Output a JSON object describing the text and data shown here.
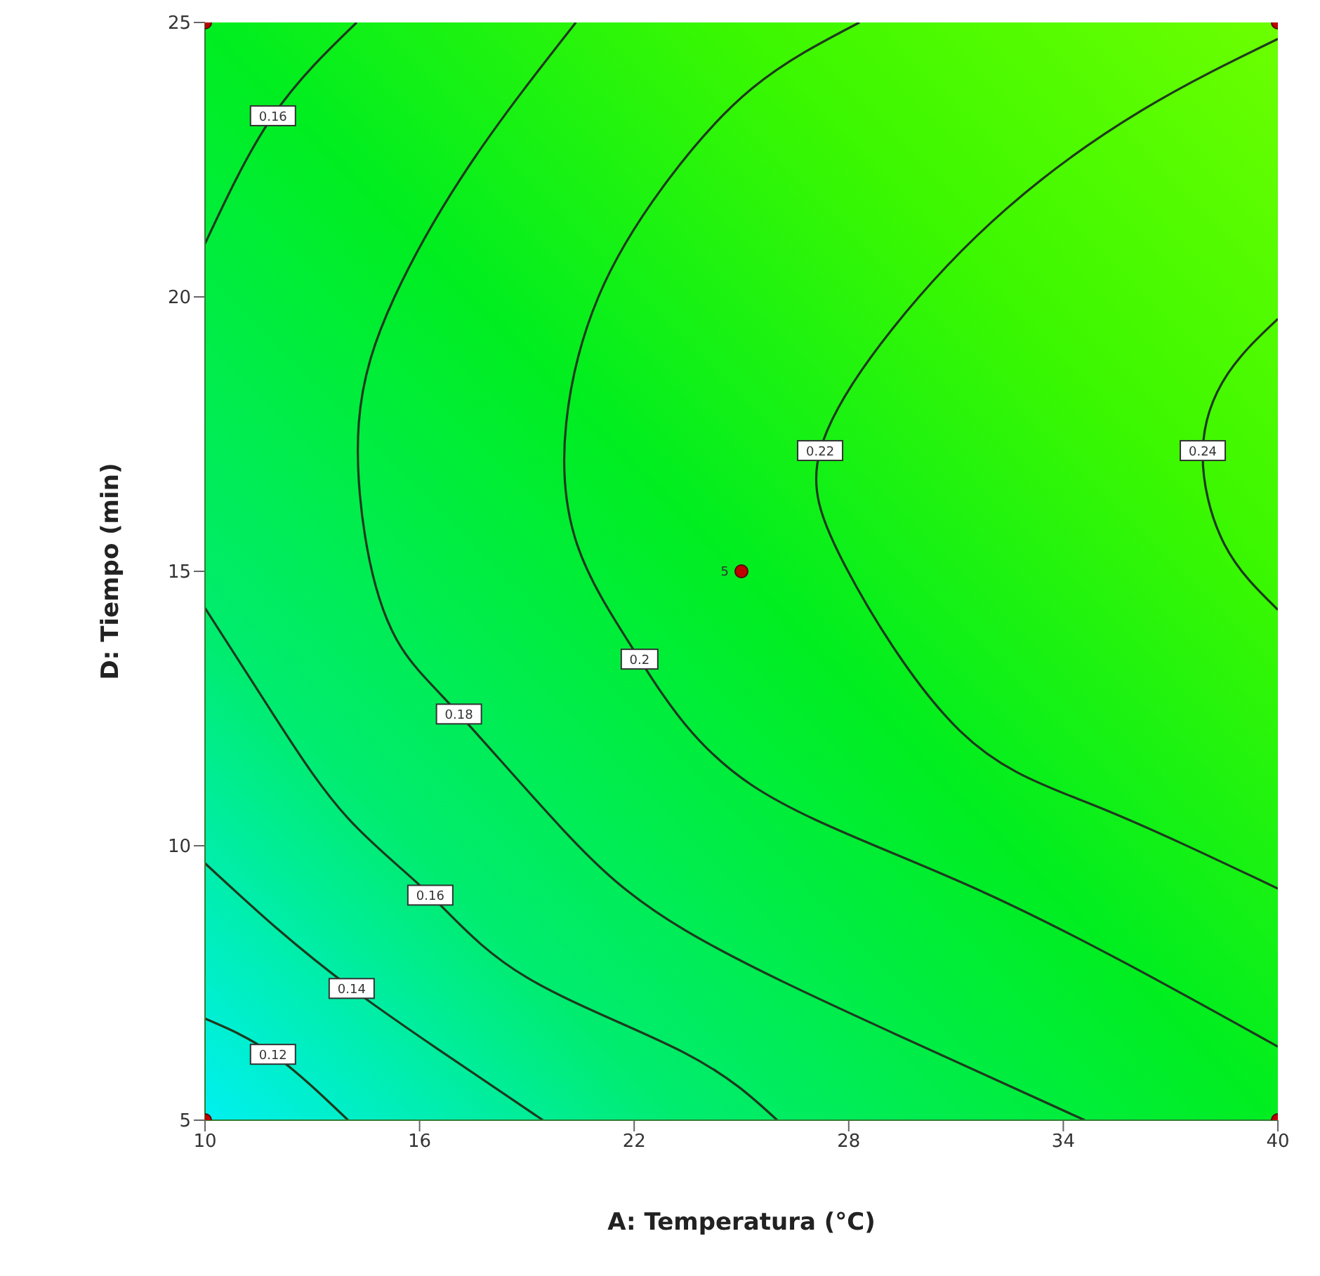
{
  "chart_data": {
    "type": "line",
    "xlabel": "A: Temperatura (°C)",
    "ylabel": "D: Tiempo (min)",
    "xlim": [
      10,
      40
    ],
    "xticks": [
      10,
      16,
      22,
      28,
      34,
      40
    ],
    "ylim": [
      5,
      25
    ],
    "yticks": [
      5,
      10,
      15,
      20,
      25
    ],
    "grid": false,
    "line_style": "solid",
    "marker": "none",
    "series": [
      {
        "color": "#1e3a1e",
        "x": [
          10,
          11.9,
          14.0
        ],
        "values": [
          6.85,
          6.2,
          5
        ]
      },
      {
        "color": "#1e3a1e",
        "x": [
          10,
          12,
          14.1,
          16.5,
          19.45
        ],
        "values": [
          9.68,
          8.5,
          7.4,
          6.3,
          5
        ]
      },
      {
        "color": "#1e3a1e",
        "x": [
          10,
          12,
          14,
          16.3,
          19,
          23.4,
          26
        ],
        "values": [
          14.33,
          12.3,
          10.5,
          9.1,
          7.6,
          6.23,
          5
        ]
      },
      {
        "color": "#1e3a1e",
        "x": [
          10,
          11.9,
          14.24
        ],
        "values": [
          20.97,
          23.3,
          25
        ]
      },
      {
        "color": "#1e3a1e",
        "x": [
          20.37,
          17.5,
          15.3,
          14.3,
          14.6,
          15.5,
          17.1,
          20,
          23.4,
          29.2,
          34.6
        ],
        "values": [
          25,
          22.5,
          20,
          17.7,
          15.2,
          13.6,
          12.4,
          10.3,
          8.47,
          6.6,
          5
        ]
      },
      {
        "color": "#1e3a1e",
        "x": [
          28.3,
          25.3,
          22.8,
          21,
          20.1,
          20.4,
          22.15,
          25.3,
          31.75,
          40
        ],
        "values": [
          25,
          23.8,
          22,
          20,
          17.7,
          15.5,
          13.4,
          11.1,
          9.16,
          6.34
        ]
      },
      {
        "color": "#1e3a1e",
        "x": [
          40,
          36.2,
          32.4,
          29.2,
          27.2,
          27.9,
          31.1,
          35,
          40
        ],
        "values": [
          24.7,
          23.4,
          21.6,
          19.4,
          17.2,
          15.1,
          12.1,
          10.7,
          9.22
        ]
      },
      {
        "color": "#1e3a1e",
        "x": [
          40,
          38.6,
          37.9,
          38.5,
          40
        ],
        "values": [
          19.6,
          18.6,
          17.2,
          15.5,
          14.3
        ]
      },
      {
        "type": "scatter",
        "marker": "circle",
        "color": "#c00000",
        "x": [
          10,
          10,
          40,
          40,
          25
        ],
        "values": [
          5,
          25,
          5,
          25,
          15
        ]
      }
    ],
    "annotations": [
      {
        "text": "5",
        "x": 25,
        "y": 15
      },
      {
        "text": "0.12",
        "x": 11.9,
        "y": 6.2
      },
      {
        "text": "0.14",
        "x": 14.1,
        "y": 7.4
      },
      {
        "text": "0.16",
        "x": 16.3,
        "y": 9.1
      },
      {
        "text": "0.16",
        "x": 11.9,
        "y": 23.3
      },
      {
        "text": "0.18",
        "x": 17.1,
        "y": 12.4
      },
      {
        "text": "0.2",
        "x": 22.15,
        "y": 13.4
      },
      {
        "text": "0.22",
        "x": 27.2,
        "y": 17.2
      },
      {
        "text": "0.24",
        "x": 37.9,
        "y": 17.2
      }
    ]
  }
}
